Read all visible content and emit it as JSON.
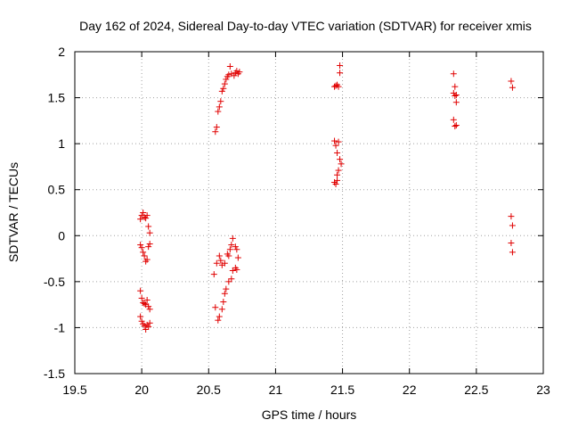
{
  "chart_data": {
    "type": "scatter",
    "title": "Day 162 of 2024, Sidereal Day-to-day VTEC variation (SDTVAR) for receiver xmis",
    "xlabel": "GPS time / hours",
    "ylabel": "SDTVAR / TECUs",
    "xlim": [
      19.5,
      23
    ],
    "ylim": [
      -1.5,
      2
    ],
    "x_ticks": [
      "19.5",
      "20",
      "20.5",
      "21",
      "21.5",
      "22",
      "22.5",
      "23"
    ],
    "y_ticks": [
      "-1.5",
      "-1",
      "-0.5",
      "0",
      "0.5",
      "1",
      "1.5",
      "2"
    ],
    "grid": true,
    "marker": "plus",
    "color": "#e00000",
    "series": [
      {
        "name": "SDTVAR",
        "points": [
          [
            19.99,
            0.18
          ],
          [
            20.0,
            0.22
          ],
          [
            20.01,
            0.25
          ],
          [
            20.02,
            0.2
          ],
          [
            20.03,
            0.19
          ],
          [
            20.04,
            0.22
          ],
          [
            20.05,
            0.1
          ],
          [
            20.06,
            0.03
          ],
          [
            19.99,
            -0.1
          ],
          [
            20.0,
            -0.13
          ],
          [
            20.01,
            -0.18
          ],
          [
            20.02,
            -0.22
          ],
          [
            20.03,
            -0.28
          ],
          [
            20.04,
            -0.26
          ],
          [
            20.05,
            -0.12
          ],
          [
            20.06,
            -0.09
          ],
          [
            19.99,
            -0.6
          ],
          [
            20.0,
            -0.68
          ],
          [
            20.01,
            -0.73
          ],
          [
            20.02,
            -0.74
          ],
          [
            20.03,
            -0.75
          ],
          [
            20.04,
            -0.7
          ],
          [
            20.05,
            -0.77
          ],
          [
            20.06,
            -0.8
          ],
          [
            19.99,
            -0.88
          ],
          [
            20.0,
            -0.93
          ],
          [
            20.01,
            -0.96
          ],
          [
            20.02,
            -0.98
          ],
          [
            20.03,
            -1.02
          ],
          [
            20.04,
            -0.97
          ],
          [
            20.05,
            -0.99
          ],
          [
            20.06,
            -0.95
          ],
          [
            20.55,
            1.13
          ],
          [
            20.56,
            1.18
          ],
          [
            20.57,
            1.35
          ],
          [
            20.58,
            1.4
          ],
          [
            20.59,
            1.46
          ],
          [
            20.6,
            1.57
          ],
          [
            20.61,
            1.6
          ],
          [
            20.62,
            1.65
          ],
          [
            20.63,
            1.7
          ],
          [
            20.64,
            1.73
          ],
          [
            20.65,
            1.75
          ],
          [
            20.66,
            1.84
          ],
          [
            20.67,
            1.76
          ],
          [
            20.69,
            1.74
          ],
          [
            20.7,
            1.77
          ],
          [
            20.71,
            1.79
          ],
          [
            20.72,
            1.76
          ],
          [
            20.73,
            1.78
          ],
          [
            20.54,
            -0.42
          ],
          [
            20.56,
            -0.3
          ],
          [
            20.58,
            -0.22
          ],
          [
            20.59,
            -0.27
          ],
          [
            20.6,
            -0.32
          ],
          [
            20.62,
            -0.3
          ],
          [
            20.64,
            -0.2
          ],
          [
            20.65,
            -0.22
          ],
          [
            20.66,
            -0.15
          ],
          [
            20.67,
            -0.1
          ],
          [
            20.68,
            -0.03
          ],
          [
            20.7,
            -0.12
          ],
          [
            20.71,
            -0.15
          ],
          [
            20.72,
            -0.24
          ],
          [
            20.55,
            -0.78
          ],
          [
            20.57,
            -0.92
          ],
          [
            20.58,
            -0.88
          ],
          [
            20.6,
            -0.8
          ],
          [
            20.61,
            -0.72
          ],
          [
            20.62,
            -0.63
          ],
          [
            20.63,
            -0.58
          ],
          [
            20.65,
            -0.5
          ],
          [
            20.67,
            -0.47
          ],
          [
            20.68,
            -0.38
          ],
          [
            20.7,
            -0.35
          ],
          [
            20.71,
            -0.37
          ],
          [
            21.44,
            1.62
          ],
          [
            21.45,
            1.63
          ],
          [
            21.46,
            1.64
          ],
          [
            21.47,
            1.62
          ],
          [
            21.48,
            1.85
          ],
          [
            21.48,
            1.77
          ],
          [
            21.44,
            1.03
          ],
          [
            21.45,
            0.98
          ],
          [
            21.46,
            0.9
          ],
          [
            21.47,
            1.02
          ],
          [
            21.48,
            0.83
          ],
          [
            21.49,
            0.78
          ],
          [
            21.47,
            0.71
          ],
          [
            21.46,
            0.66
          ],
          [
            21.44,
            0.58
          ],
          [
            21.45,
            0.56
          ],
          [
            21.46,
            0.6
          ],
          [
            22.33,
            1.76
          ],
          [
            22.34,
            1.62
          ],
          [
            22.33,
            1.55
          ],
          [
            22.34,
            1.52
          ],
          [
            22.35,
            1.53
          ],
          [
            22.35,
            1.45
          ],
          [
            22.33,
            1.26
          ],
          [
            22.34,
            1.19
          ],
          [
            22.35,
            1.2
          ],
          [
            22.76,
            1.68
          ],
          [
            22.77,
            1.61
          ],
          [
            22.76,
            0.21
          ],
          [
            22.77,
            0.11
          ],
          [
            22.76,
            -0.08
          ],
          [
            22.77,
            -0.18
          ]
        ]
      }
    ]
  }
}
